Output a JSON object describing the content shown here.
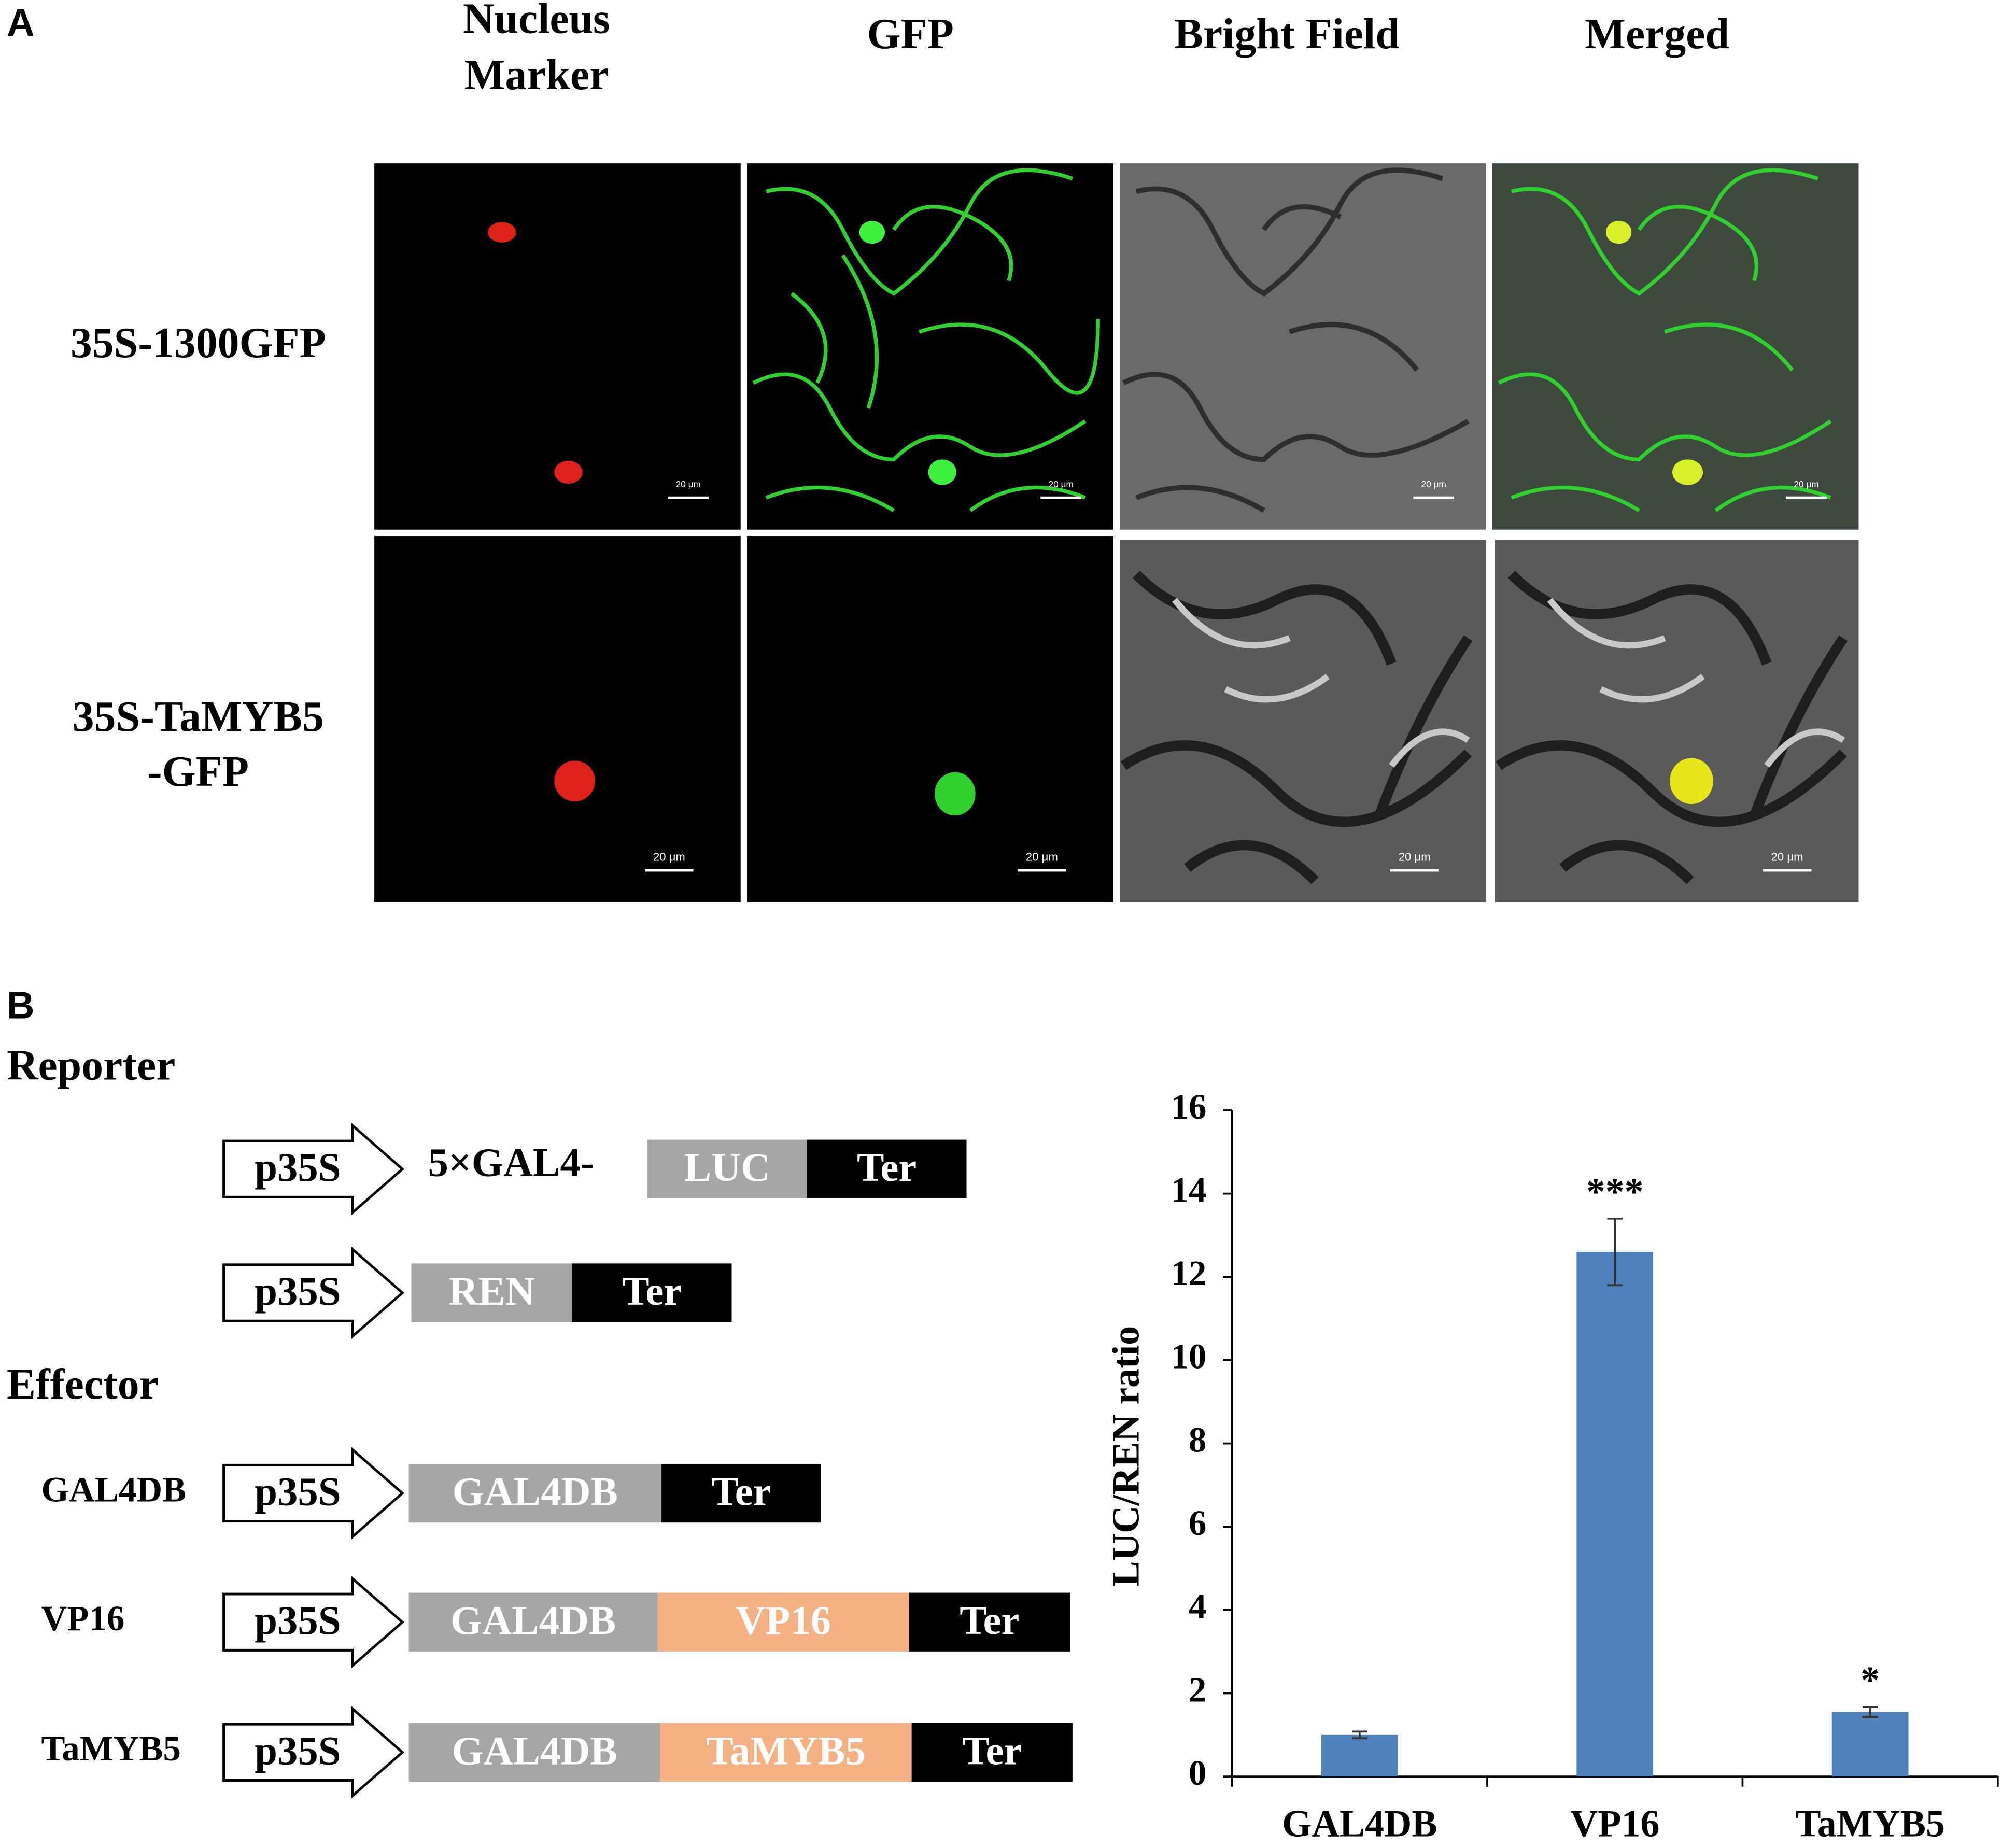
{
  "panel_a": {
    "label": "A",
    "columns": [
      "Nucleus",
      "Marker",
      "GFP",
      "Bright Field",
      "Merged"
    ],
    "rows": [
      [
        "35S-1300GFP"
      ],
      [
        "35S-TaMYB5",
        "-GFP"
      ]
    ],
    "scale_bar": "20 μm"
  },
  "panel_b": {
    "label": "B",
    "reporter_title": "Reporter",
    "effector_title": "Effector",
    "reporters": [
      {
        "promoter": "p35S",
        "prefix": "5×GAL4-",
        "parts": [
          {
            "text": "LUC",
            "color": "#a6a6a6"
          },
          {
            "text": "Ter",
            "color": "#000000"
          }
        ]
      },
      {
        "promoter": "p35S",
        "parts": [
          {
            "text": "REN",
            "color": "#a6a6a6"
          },
          {
            "text": "Ter",
            "color": "#000000"
          }
        ]
      }
    ],
    "effectors": [
      {
        "label": "GAL4DB",
        "promoter": "p35S",
        "parts": [
          {
            "text": "GAL4DB",
            "color": "#a6a6a6"
          },
          {
            "text": "Ter",
            "color": "#000000"
          }
        ]
      },
      {
        "label": "VP16",
        "promoter": "p35S",
        "parts": [
          {
            "text": "GAL4DB",
            "color": "#a6a6a6"
          },
          {
            "text": "VP16",
            "color": "#f4b183"
          },
          {
            "text": "Ter",
            "color": "#000000"
          }
        ]
      },
      {
        "label": "TaMYB5",
        "promoter": "p35S",
        "parts": [
          {
            "text": "GAL4DB",
            "color": "#a6a6a6"
          },
          {
            "text": "TaMYB5",
            "color": "#f4b183"
          },
          {
            "text": "Ter",
            "color": "#000000"
          }
        ]
      }
    ]
  },
  "chart_data": {
    "type": "bar",
    "y_label": "LUC/REN ratio",
    "categories": [
      "GAL4DB",
      "VP16",
      "TaMYB5"
    ],
    "values": [
      1.0,
      12.6,
      1.55
    ],
    "errors": [
      0.08,
      0.8,
      0.12
    ],
    "significance": [
      null,
      "***",
      "*"
    ],
    "color": "#4f81bd",
    "ylim": [
      0,
      16
    ],
    "yticks": [
      0,
      2,
      4,
      6,
      8,
      10,
      12,
      14,
      16
    ]
  }
}
